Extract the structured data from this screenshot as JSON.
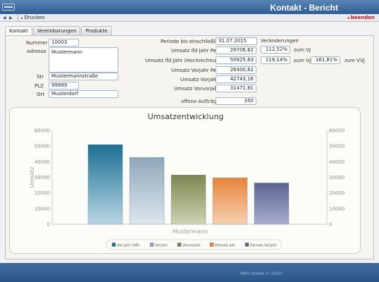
{
  "header": {
    "title": "Kontakt - Bericht"
  },
  "toolbar": {
    "back": "◀",
    "forward": "▶",
    "print_label": "Drucken",
    "quit_label": "beenden"
  },
  "tabs": [
    {
      "label": "Kontakt"
    },
    {
      "label": "Vereinbarungen"
    },
    {
      "label": "Produkte"
    }
  ],
  "contact": {
    "nummer_label": "Nummer",
    "nummer": "10003",
    "adresse_label": "Adresse",
    "adresse": "Mustermann",
    "str_label": "Str",
    "str": "Mustermannstraße",
    "plz_label": "PLZ",
    "plz": "99999",
    "ort_label": "Ort",
    "ort": "Musterdorf"
  },
  "stats": {
    "periode_label": "Periode bis einschließlich:",
    "periode": "31.07.2015",
    "veraenderungen_label": "Veränderungen",
    "umsatz_lfd_label": "Umsatz lfd Jahr Per",
    "umsatz_lfd": "29706,62",
    "umsatz_lfd_pct": "112,52%",
    "zum_vj_1": "zum VJ",
    "umsatz_hr_label": "Umsatz lfd Jahr (Hochrechnung)",
    "umsatz_hr": "50925,63",
    "umsatz_hr_pct": "119,14%",
    "zum_vj_2": "zum VJ",
    "umsatz_hr_pct2": "161,81%",
    "zum_vvj": "zum VVJ",
    "umsatz_vj_per_label": "Umsatz Vorjahr Per",
    "umsatz_vj_per": "26400,62",
    "umsatz_vj_label": "Umsatz Vorjahr",
    "umsatz_vj": "42743,16",
    "umsatz_vvj_label": "Umsatz Vorvorjahr",
    "umsatz_vvj": "31471,81",
    "offene_label": "offene Aufträge",
    "offene": "350"
  },
  "chart_data": {
    "type": "bar",
    "title": "Umsatzentwicklung",
    "xlabel": "Mustermann",
    "ylabel": "Umsatz",
    "ylim": [
      0,
      60000
    ],
    "yticks": [
      "0",
      "10000",
      "20000",
      "30000",
      "40000",
      "50000",
      "60000"
    ],
    "secondary_yaxis": true,
    "grid": false,
    "legend_position": "bottom",
    "categories": [
      "Mustermann"
    ],
    "series": [
      {
        "name": "Akt.Jahr (HR)",
        "value": 50925.63,
        "color": "#1d6f93",
        "color_light": "#b7d6e4"
      },
      {
        "name": "Vorjahr",
        "value": 42743.16,
        "color": "#8fa6b9",
        "color_light": "#dde7ee"
      },
      {
        "name": "Vorvorjahr",
        "value": 31471.81,
        "color": "#7c8650",
        "color_light": "#cfd3b1"
      },
      {
        "name": "Periode akt.",
        "value": 29706.62,
        "color": "#e8843d",
        "color_light": "#f7d0ae"
      },
      {
        "name": "Periode Vorjahr",
        "value": 26400.62,
        "color": "#5b6690",
        "color_light": "#a7add0"
      }
    ]
  },
  "footer": {
    "copyright": "MKV GmbH © 2010"
  }
}
